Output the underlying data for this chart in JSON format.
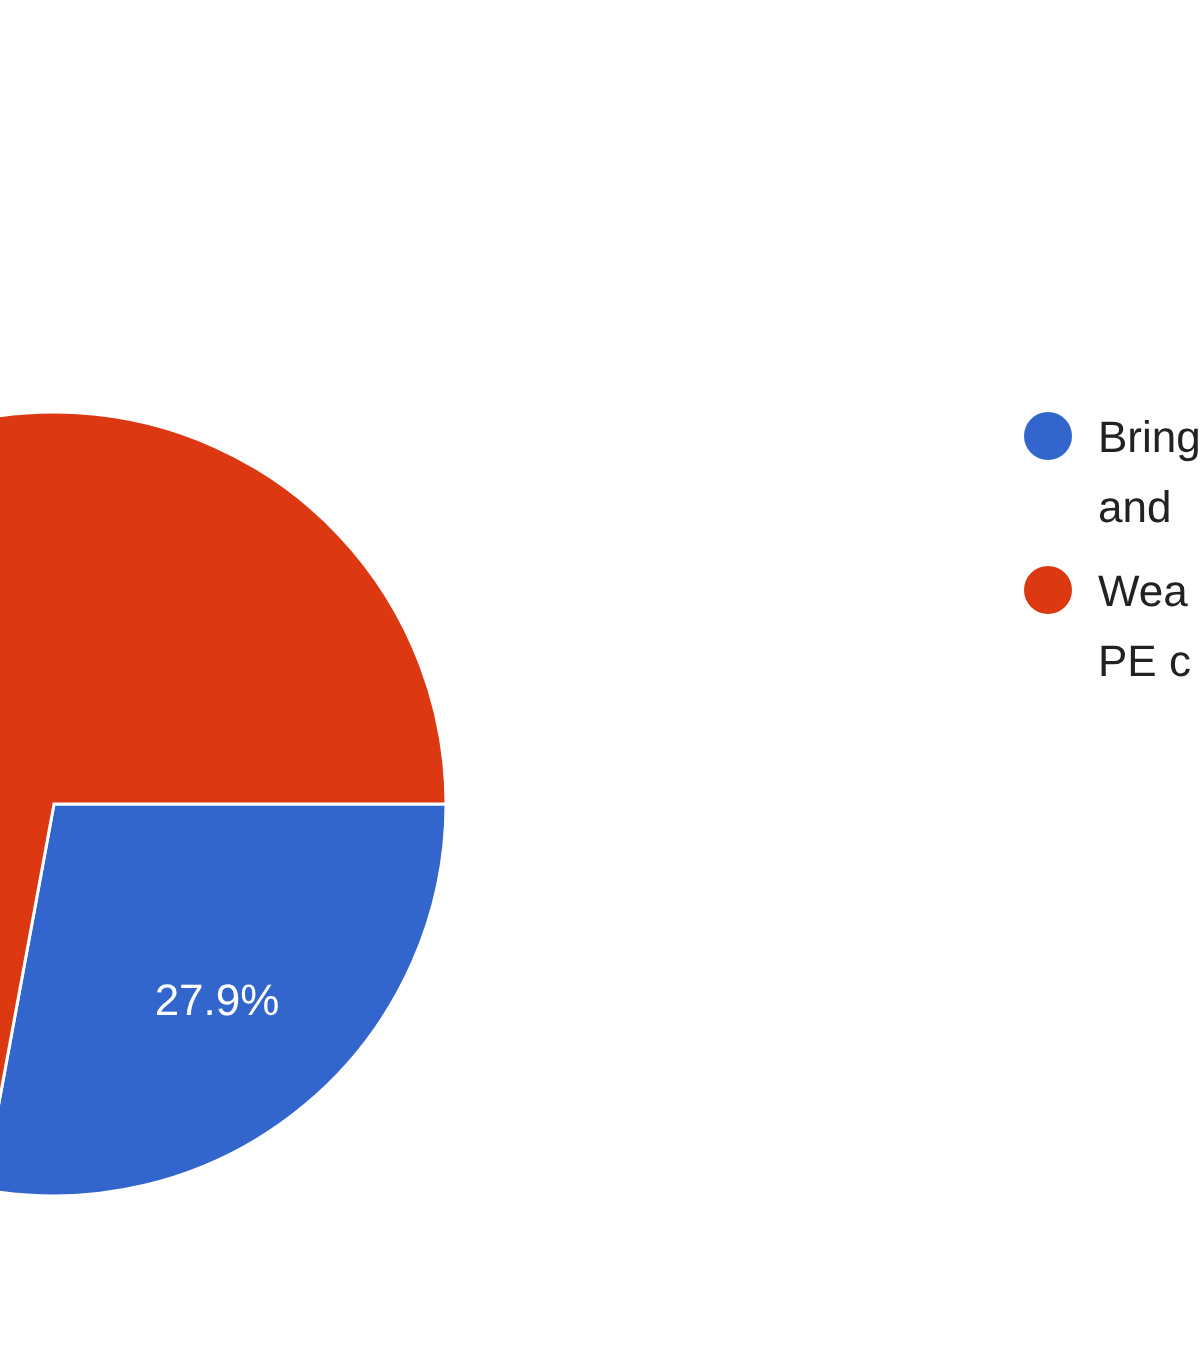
{
  "chart_data": {
    "type": "pie",
    "categories": [
      "Bring and",
      "Wea PE c"
    ],
    "values": [
      27.9,
      72.1
    ],
    "colors": [
      "#3366cc",
      "#dc3912"
    ],
    "value_labels": [
      "27.9%",
      null
    ],
    "legend": "right"
  }
}
